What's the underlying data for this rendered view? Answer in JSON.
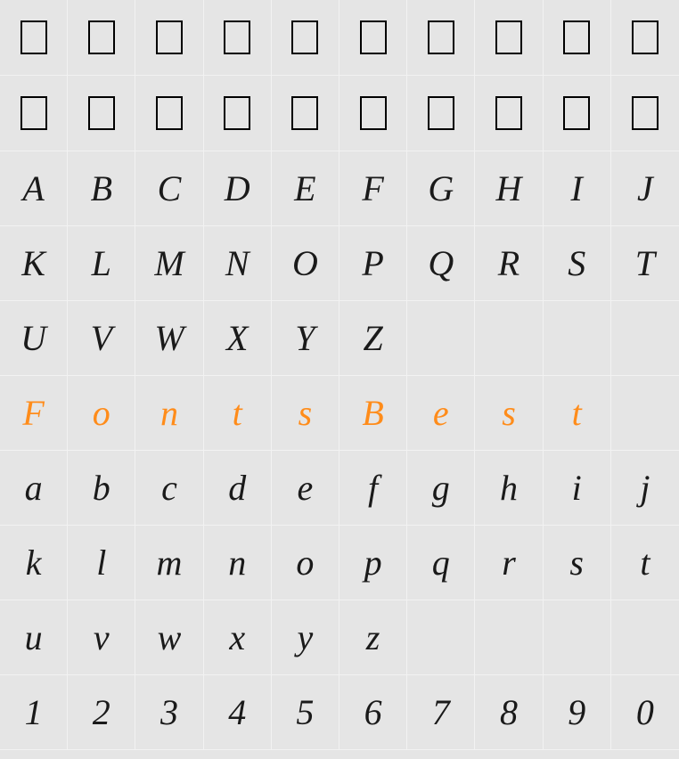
{
  "grid": {
    "columns": 10,
    "rows": 10,
    "cell_border_color": "#f2f2f2",
    "background_color": "#e5e5e5",
    "text_color": "#1a1a1a",
    "accent_color": "#ff8c1a",
    "font_family": "Brush Script MT, Segoe Script, cursive",
    "font_size": 40,
    "rowsData": [
      {
        "type": "box",
        "cells": [
          "",
          "",
          "",
          "",
          "",
          "",
          "",
          "",
          "",
          ""
        ]
      },
      {
        "type": "box",
        "cells": [
          "",
          "",
          "",
          "",
          "",
          "",
          "",
          "",
          "",
          ""
        ]
      },
      {
        "type": "glyph",
        "cells": [
          "A",
          "B",
          "C",
          "D",
          "E",
          "F",
          "G",
          "H",
          "I",
          "J"
        ]
      },
      {
        "type": "glyph",
        "cells": [
          "K",
          "L",
          "M",
          "N",
          "O",
          "P",
          "Q",
          "R",
          "S",
          "T"
        ]
      },
      {
        "type": "glyph",
        "cells": [
          "U",
          "V",
          "W",
          "X",
          "Y",
          "Z",
          "",
          "",
          "",
          ""
        ]
      },
      {
        "type": "glyph-accent",
        "cells": [
          "F",
          "o",
          "n",
          "t",
          "s",
          "B",
          "e",
          "s",
          "t",
          ""
        ]
      },
      {
        "type": "glyph",
        "cells": [
          "a",
          "b",
          "c",
          "d",
          "e",
          "f",
          "g",
          "h",
          "i",
          "j"
        ]
      },
      {
        "type": "glyph",
        "cells": [
          "k",
          "l",
          "m",
          "n",
          "o",
          "p",
          "q",
          "r",
          "s",
          "t"
        ]
      },
      {
        "type": "glyph",
        "cells": [
          "u",
          "v",
          "w",
          "x",
          "y",
          "z",
          "",
          "",
          "",
          ""
        ]
      },
      {
        "type": "glyph-num",
        "cells": [
          "1",
          "2",
          "3",
          "4",
          "5",
          "6",
          "7",
          "8",
          "9",
          "0"
        ]
      }
    ]
  },
  "box_style": {
    "width": 30,
    "height": 38,
    "border_color": "#000000",
    "border_width": 2
  }
}
